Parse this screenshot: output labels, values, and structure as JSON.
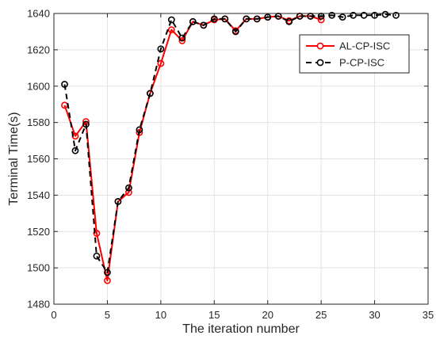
{
  "chart_data": {
    "type": "line",
    "title": "",
    "xlabel": "The iteration number",
    "ylabel": "Terminal Time(s)",
    "xlim": [
      0,
      35
    ],
    "ylim": [
      1480,
      1640
    ],
    "xticks": [
      0,
      5,
      10,
      15,
      20,
      25,
      30,
      35
    ],
    "yticks": [
      1480,
      1500,
      1520,
      1540,
      1560,
      1580,
      1600,
      1620,
      1640
    ],
    "grid": true,
    "legend_position": "top-right",
    "series": [
      {
        "name": "AL-CP-ISC",
        "color": "#ff0000",
        "line_style": "solid",
        "marker": "circle",
        "x": [
          1,
          2,
          3,
          4,
          5,
          6,
          7,
          8,
          9,
          10,
          11,
          12,
          13,
          14,
          15,
          16,
          17,
          18,
          19,
          20,
          21,
          22,
          23,
          24,
          25
        ],
        "y": [
          1589.5,
          1572.5,
          1580.5,
          1519,
          1493,
          1536.5,
          1541.5,
          1574.5,
          1596,
          1612.5,
          1631,
          1625,
          1635.5,
          1633.5,
          1636.5,
          1637,
          1630.5,
          1637,
          1637,
          1638,
          1638.5,
          1636,
          1638.5,
          1638.5,
          1636.5
        ]
      },
      {
        "name": "P-CP-ISC",
        "color": "#000000",
        "line_style": "dashed",
        "marker": "circle",
        "x": [
          1,
          2,
          3,
          4,
          5,
          6,
          7,
          8,
          9,
          10,
          11,
          12,
          13,
          14,
          15,
          16,
          17,
          18,
          19,
          20,
          21,
          22,
          23,
          24,
          25,
          26,
          27,
          28,
          29,
          30,
          31,
          32
        ],
        "y": [
          1601,
          1564.5,
          1579,
          1506.5,
          1497.5,
          1536.5,
          1544,
          1576,
          1596,
          1620.5,
          1636.5,
          1626.5,
          1635.5,
          1633.5,
          1637,
          1637,
          1630,
          1637,
          1637,
          1638,
          1638.5,
          1635.5,
          1638.5,
          1638.5,
          1638.5,
          1639,
          1638,
          1639,
          1639,
          1639,
          1639.5,
          1639
        ]
      }
    ]
  }
}
